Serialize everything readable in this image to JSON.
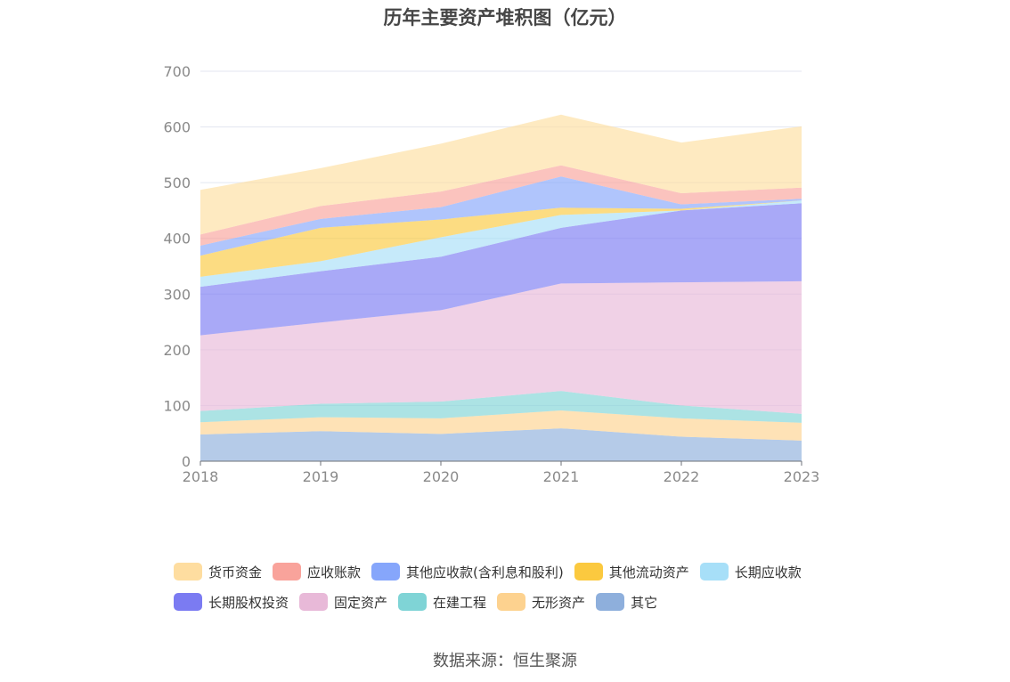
{
  "chart_data": {
    "type": "area",
    "stacked": true,
    "title": "历年主要资产堆积图（亿元）",
    "xlabel": "",
    "ylabel": "",
    "categories": [
      "2018",
      "2019",
      "2020",
      "2021",
      "2022",
      "2023"
    ],
    "ylim": [
      0,
      700
    ],
    "yticks": [
      0,
      100,
      200,
      300,
      400,
      500,
      600,
      700
    ],
    "grid": true,
    "legend_position": "bottom",
    "series": [
      {
        "name": "其它",
        "color": "#8eafdc",
        "values": [
          48,
          54,
          49,
          59,
          44,
          37
        ]
      },
      {
        "name": "无形资产",
        "color": "#fdd28f",
        "values": [
          22,
          25,
          28,
          32,
          33,
          32
        ]
      },
      {
        "name": "在建工程",
        "color": "#7fd4d6",
        "values": [
          20,
          24,
          30,
          35,
          23,
          16
        ]
      },
      {
        "name": "固定资产",
        "color": "#e8b9d8",
        "values": [
          136,
          146,
          164,
          193,
          221,
          238
        ]
      },
      {
        "name": "长期股权投资",
        "color": "#7b7bf2",
        "values": [
          87,
          92,
          96,
          100,
          129,
          140
        ]
      },
      {
        "name": "长期应收款",
        "color": "#a7dff8",
        "values": [
          18,
          18,
          35,
          23,
          0,
          5
        ]
      },
      {
        "name": "其他流动资产",
        "color": "#fbc93f",
        "values": [
          38,
          60,
          32,
          13,
          3,
          0
        ]
      },
      {
        "name": "其他应收款(含利息和股利)",
        "color": "#86a6fb",
        "values": [
          18,
          16,
          22,
          56,
          8,
          3
        ]
      },
      {
        "name": "应收账款",
        "color": "#f9a39b",
        "values": [
          20,
          23,
          28,
          20,
          20,
          20
        ]
      },
      {
        "name": "货币资金",
        "color": "#fedea0",
        "values": [
          80,
          68,
          86,
          91,
          91,
          110
        ]
      }
    ]
  },
  "legend": [
    {
      "label": "货币资金",
      "color": "#fedda0"
    },
    {
      "label": "应收账款",
      "color": "#f9a39b"
    },
    {
      "label": "其他应收款(含利息和股利)",
      "color": "#86a6fb"
    },
    {
      "label": "其他流动资产",
      "color": "#fbc93f"
    },
    {
      "label": "长期应收款",
      "color": "#a7dff8"
    },
    {
      "label": "长期股权投资",
      "color": "#7b7bf2"
    },
    {
      "label": "固定资产",
      "color": "#e8b9d8"
    },
    {
      "label": "在建工程",
      "color": "#7fd4d6"
    },
    {
      "label": "无形资产",
      "color": "#fdd28f"
    },
    {
      "label": "其它",
      "color": "#8eafdc"
    }
  ],
  "source": "数据来源：恒生聚源"
}
